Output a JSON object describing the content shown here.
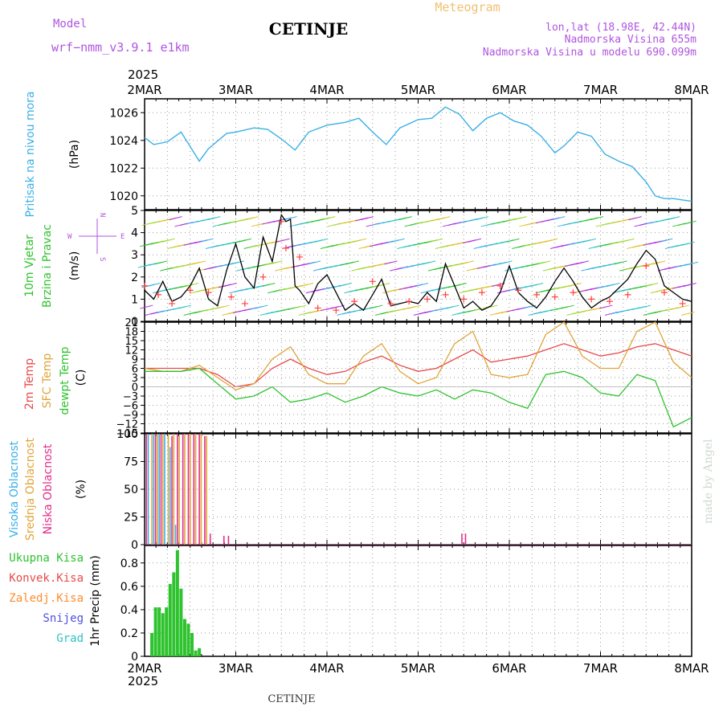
{
  "header": {
    "model_label": "Model",
    "model_name": "wrf−nmm_v3.9.1  e1km",
    "station": "CETINJE",
    "product": "Meteogram",
    "coords": "lon,lat (18.98E, 42.44N)",
    "elevation": "Nadmorska Visina 655m",
    "model_elevation": "Nadmorska Visina u modelu 690.099m"
  },
  "footer": {
    "station": "CETINJE",
    "credit": "made by Angel"
  },
  "time_axis": {
    "year": "2025",
    "labels": [
      "2MAR",
      "3MAR",
      "4MAR",
      "5MAR",
      "6MAR",
      "7MAR",
      "8MAR"
    ],
    "start_day": 2,
    "end_day": 8
  },
  "colors": {
    "pressure": "#3ab0e6",
    "wind_speed": "#000000",
    "gust": "#ff4040",
    "t2m": "#e84a4a",
    "sfc": "#e0a43a",
    "dewpt": "#2ec32e",
    "high_cloud": "#3ab0e6",
    "mid_cloud": "#e0a43a",
    "low_cloud": "#e0308a",
    "precip_total": "#2ec32e",
    "precip_conv": "#e84a4a",
    "precip_grid": "#ff8c2a",
    "snow": "#5050e0",
    "graupel": "#2ec3c3",
    "model_text": "#b055e0",
    "title_accent": "#f0c070"
  },
  "panels": {
    "pressure": {
      "ylabel_left": "Pritisak na nivou mora",
      "unit": "(hPa)",
      "ticks": [
        "1020",
        "1022",
        "1024",
        "1026"
      ]
    },
    "wind": {
      "ylabel_left": [
        "10m Vjetar",
        "Brzina i Pravac"
      ],
      "unit": "(m/s)",
      "ticks": [
        "0",
        "1",
        "2",
        "3",
        "4",
        "5"
      ],
      "compass": [
        "N",
        "E",
        "W",
        "S"
      ]
    },
    "temp": {
      "ylabel_left": [
        "2m Temp",
        "SFC Temp",
        "dewpt Temp"
      ],
      "unit": "(C)",
      "ticks": [
        "21",
        "18",
        "15",
        "12",
        "9",
        "6",
        "3",
        "0",
        "−3",
        "−6",
        "−9",
        "−12",
        "−15"
      ]
    },
    "cloud": {
      "ylabel_left": [
        "Visoka Oblacnost",
        "Srednja Oblacnost",
        "Niska Oblacnost"
      ],
      "unit": "(%)",
      "ticks": [
        "0",
        "25",
        "50",
        "75",
        "100"
      ]
    },
    "precip": {
      "ylabel_left": [
        "Ukupna Kisa",
        "Konvek.Kisa",
        "Zaledj.Kisa",
        "Snijeg",
        "Grad"
      ],
      "unit": "1hr Precip (mm)",
      "ticks": [
        "0",
        "0.2",
        "0.4",
        "0.6",
        "0.8"
      ]
    }
  },
  "chart_data": [
    {
      "type": "line",
      "title": "Pritisak na nivou mora",
      "ylabel": "(hPa)",
      "ylim": [
        1019,
        1027
      ],
      "x_unit": "day of March 2025",
      "series": [
        {
          "name": "Pritisak na nivou mora",
          "x": [
            2.0,
            2.1,
            2.25,
            2.4,
            2.6,
            2.7,
            2.9,
            3.0,
            3.2,
            3.35,
            3.5,
            3.65,
            3.8,
            4.0,
            4.2,
            4.35,
            4.5,
            4.65,
            4.8,
            5.0,
            5.15,
            5.3,
            5.45,
            5.6,
            5.75,
            5.9,
            6.05,
            6.2,
            6.35,
            6.5,
            6.6,
            6.75,
            6.9,
            7.05,
            7.2,
            7.35,
            7.5,
            7.6,
            7.7,
            7.8,
            7.9,
            8.0
          ],
          "y": [
            1024.2,
            1023.7,
            1023.9,
            1024.6,
            1022.5,
            1023.4,
            1024.5,
            1024.6,
            1024.9,
            1024.8,
            1024.1,
            1023.3,
            1024.6,
            1025.1,
            1025.3,
            1025.6,
            1024.6,
            1023.7,
            1024.9,
            1025.5,
            1025.6,
            1026.4,
            1025.9,
            1024.7,
            1025.6,
            1026.0,
            1025.4,
            1025.1,
            1024.3,
            1023.1,
            1023.6,
            1024.6,
            1024.3,
            1023.0,
            1022.5,
            1022.1,
            1021.0,
            1020.0,
            1019.8,
            1019.8,
            1019.7,
            1019.6
          ]
        }
      ]
    },
    {
      "type": "line",
      "title": "10m Vjetar Brzina i Pravac",
      "ylabel": "(m/s)",
      "ylim": [
        0,
        5
      ],
      "x_unit": "day of March 2025",
      "series": [
        {
          "name": "10m Vjetar Brzina",
          "x": [
            2.0,
            2.1,
            2.2,
            2.3,
            2.4,
            2.5,
            2.6,
            2.7,
            2.8,
            2.9,
            3.0,
            3.1,
            3.2,
            3.3,
            3.4,
            3.5,
            3.55,
            3.6,
            3.65,
            3.7,
            3.8,
            3.9,
            4.0,
            4.1,
            4.2,
            4.3,
            4.4,
            4.5,
            4.6,
            4.7,
            4.8,
            4.9,
            5.0,
            5.1,
            5.2,
            5.3,
            5.4,
            5.5,
            5.6,
            5.7,
            5.8,
            5.9,
            6.0,
            6.1,
            6.2,
            6.3,
            6.4,
            6.5,
            6.6,
            6.7,
            6.8,
            6.9,
            7.0,
            7.1,
            7.2,
            7.3,
            7.4,
            7.5,
            7.6,
            7.7,
            7.8,
            7.9,
            8.0
          ],
          "y": [
            1.4,
            1.0,
            1.8,
            0.9,
            1.1,
            1.6,
            2.4,
            1.0,
            0.7,
            2.3,
            3.5,
            2.0,
            1.5,
            3.8,
            2.7,
            4.8,
            4.5,
            4.6,
            1.6,
            1.4,
            0.8,
            1.7,
            2.1,
            1.3,
            0.5,
            0.8,
            0.5,
            1.2,
            1.9,
            0.7,
            0.8,
            0.9,
            0.8,
            1.3,
            0.9,
            2.6,
            1.6,
            0.6,
            0.9,
            0.5,
            0.7,
            1.3,
            2.5,
            1.3,
            0.9,
            0.6,
            1.1,
            1.8,
            2.4,
            1.8,
            1.1,
            0.6,
            0.9,
            1.1,
            1.5,
            1.9,
            2.6,
            3.2,
            2.8,
            1.6,
            1.3,
            1.0,
            0.9
          ]
        },
        {
          "name": "Udar vjetra",
          "x": [
            2.0,
            2.15,
            2.3,
            2.5,
            2.7,
            2.95,
            3.1,
            3.3,
            3.5,
            3.55,
            3.7,
            3.9,
            4.1,
            4.3,
            4.5,
            4.7,
            4.9,
            5.1,
            5.3,
            5.5,
            5.7,
            5.9,
            6.1,
            6.3,
            6.5,
            6.7,
            6.9,
            7.1,
            7.3,
            7.5,
            7.7,
            7.9
          ],
          "y": [
            1.6,
            1.2,
            0.8,
            1.4,
            1.3,
            1.1,
            0.8,
            2.0,
            4.5,
            3.3,
            2.9,
            0.6,
            0.5,
            0.9,
            1.8,
            0.8,
            0.9,
            1.0,
            1.2,
            1.0,
            1.3,
            1.6,
            1.4,
            1.2,
            1.1,
            1.3,
            1.0,
            0.9,
            1.2,
            2.5,
            1.3,
            0.8
          ]
        }
      ]
    },
    {
      "type": "line",
      "title": "Temp",
      "ylabel": "(C)",
      "ylim": [
        -15,
        21
      ],
      "x_unit": "day of March 2025",
      "series": [
        {
          "name": "2m Temp",
          "x": [
            2.0,
            2.2,
            2.4,
            2.6,
            2.8,
            3.0,
            3.2,
            3.4,
            3.6,
            3.8,
            4.0,
            4.2,
            4.4,
            4.6,
            4.8,
            5.0,
            5.2,
            5.4,
            5.6,
            5.8,
            6.0,
            6.2,
            6.4,
            6.6,
            6.8,
            7.0,
            7.2,
            7.4,
            7.6,
            7.8,
            8.0
          ],
          "y": [
            6,
            6,
            6,
            6,
            4,
            0,
            1,
            6,
            9,
            6,
            4,
            5,
            8,
            10,
            7,
            5,
            6,
            9,
            12,
            8,
            9,
            10,
            12,
            14,
            12,
            10,
            11,
            13,
            14,
            12,
            10
          ]
        },
        {
          "name": "SFC Temp",
          "x": [
            2.0,
            2.2,
            2.4,
            2.6,
            2.8,
            3.0,
            3.2,
            3.4,
            3.6,
            3.8,
            4.0,
            4.2,
            4.4,
            4.6,
            4.8,
            5.0,
            5.2,
            5.4,
            5.6,
            5.8,
            6.0,
            6.2,
            6.4,
            6.6,
            6.8,
            7.0,
            7.2,
            7.4,
            7.6,
            7.8,
            8.0
          ],
          "y": [
            6,
            5,
            5,
            7,
            3,
            -1,
            1,
            9,
            13,
            4,
            1,
            1,
            10,
            14,
            5,
            1,
            3,
            14,
            18,
            4,
            3,
            4,
            17,
            21,
            10,
            6,
            6,
            18,
            21,
            8,
            3
          ]
        },
        {
          "name": "dewpt Temp",
          "x": [
            2.0,
            2.2,
            2.4,
            2.6,
            2.8,
            3.0,
            3.2,
            3.4,
            3.6,
            3.8,
            4.0,
            4.2,
            4.4,
            4.6,
            4.8,
            5.0,
            5.2,
            5.4,
            5.6,
            5.8,
            6.0,
            6.2,
            6.4,
            6.6,
            6.8,
            7.0,
            7.2,
            7.4,
            7.6,
            7.8,
            8.0
          ],
          "y": [
            5,
            5,
            5,
            6,
            1,
            -4,
            -3,
            0,
            -5,
            -4,
            -2,
            -5,
            -3,
            0,
            -2,
            -3,
            -1,
            -4,
            -1,
            -2,
            -5,
            -7,
            4,
            5,
            3,
            -2,
            -3,
            4,
            2,
            -13,
            -10
          ]
        }
      ]
    },
    {
      "type": "bar",
      "title": "Oblacnost",
      "ylabel": "(%)",
      "ylim": [
        0,
        100
      ],
      "x_unit": "day of March 2025",
      "series": [
        {
          "name": "Visoka Oblacnost",
          "x": [
            2.04,
            2.1,
            2.16,
            2.22,
            2.28,
            2.34
          ],
          "y": [
            100,
            100,
            100,
            100,
            88,
            18
          ]
        },
        {
          "name": "Srednja Oblacnost",
          "x": [
            2.08,
            2.14,
            2.2,
            2.26,
            2.32,
            2.38,
            2.44,
            2.5,
            2.56,
            2.62,
            2.68
          ],
          "y": [
            100,
            100,
            100,
            100,
            100,
            98,
            100,
            100,
            100,
            100,
            98
          ]
        },
        {
          "name": "Niska Oblacnost",
          "x": [
            2.02,
            2.12,
            2.18,
            2.3,
            2.36,
            2.42,
            2.48,
            2.54,
            2.6,
            2.66,
            2.72,
            2.87,
            2.92,
            5.48,
            5.52
          ],
          "y": [
            100,
            100,
            100,
            98,
            100,
            100,
            100,
            100,
            100,
            98,
            10,
            8,
            8,
            10,
            10
          ]
        }
      ]
    },
    {
      "type": "bar",
      "title": "1hr Precip",
      "ylabel": "1hr Precip (mm)",
      "ylim": [
        0,
        0.95
      ],
      "x_unit": "day of March 2025",
      "series": [
        {
          "name": "Ukupna Kisa",
          "x": [
            2.08,
            2.12,
            2.16,
            2.2,
            2.24,
            2.28,
            2.32,
            2.36,
            2.4,
            2.44,
            2.48,
            2.52,
            2.56,
            2.6
          ],
          "y": [
            0.2,
            0.42,
            0.42,
            0.37,
            0.42,
            0.62,
            0.72,
            0.91,
            0.58,
            0.32,
            0.28,
            0.2,
            0.05,
            0.07
          ]
        }
      ]
    }
  ]
}
